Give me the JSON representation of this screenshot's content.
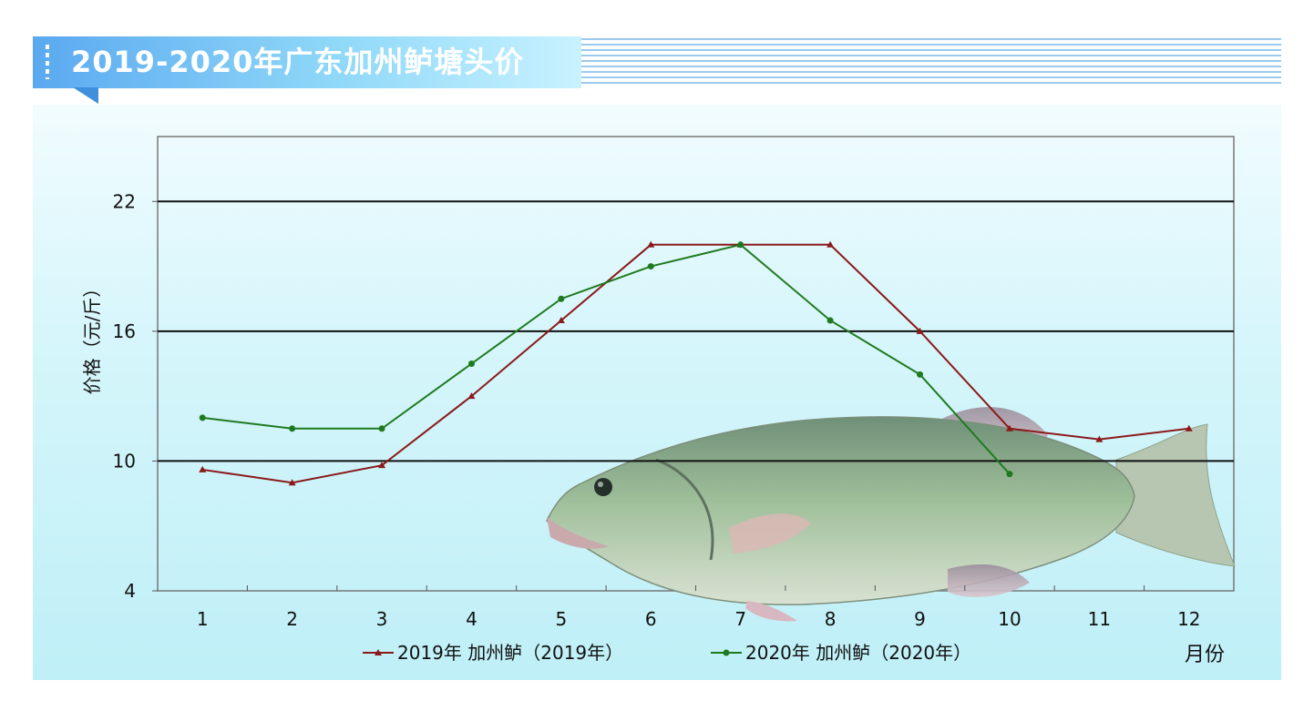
{
  "title": "2019-2020年广东加州鲈塘头价",
  "chart_data": {
    "type": "line",
    "title": "2019-2020年广东加州鲈塘头价",
    "ylabel": "价格（元/斤）",
    "xlabel": "月份",
    "categories": [
      "1",
      "2",
      "3",
      "4",
      "5",
      "6",
      "7",
      "8",
      "9",
      "10",
      "11",
      "12"
    ],
    "yticks": [
      4,
      10,
      16,
      22
    ],
    "ylim": [
      4,
      25
    ],
    "grid": "horizontal",
    "legend_position": "bottom",
    "series": [
      {
        "name": "2019年 加州鲈（2019年）",
        "color": "#8b1a1a",
        "marker": "triangle",
        "values": [
          9.6,
          9.0,
          9.8,
          13.0,
          16.5,
          20.0,
          20.0,
          20.0,
          16.0,
          11.5,
          11.0,
          11.5
        ]
      },
      {
        "name": "2020年 加州鲈（2020年）",
        "color": "#1f7a1f",
        "marker": "circle",
        "values": [
          12.0,
          11.5,
          11.5,
          14.5,
          17.5,
          19.0,
          20.0,
          16.5,
          14.0,
          9.4,
          null,
          null
        ]
      }
    ]
  }
}
